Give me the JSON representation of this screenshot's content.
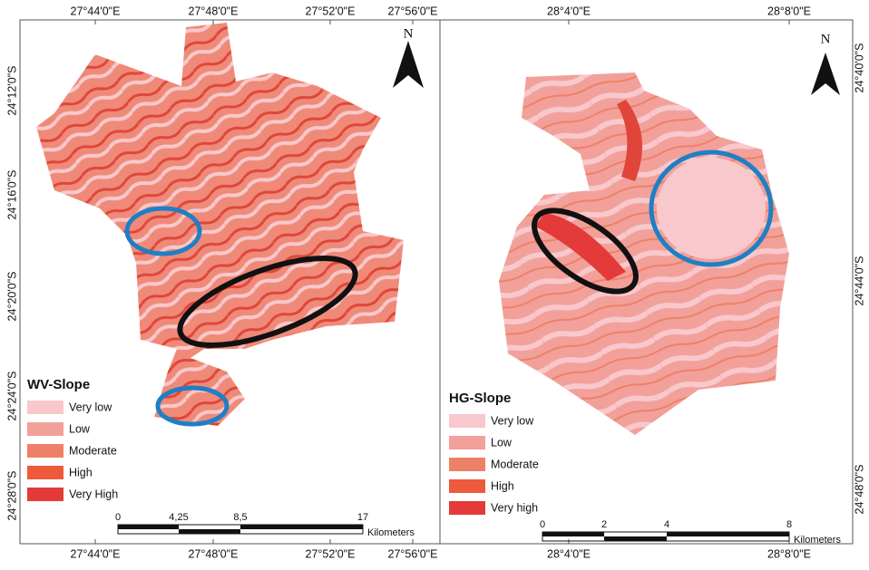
{
  "left_map": {
    "top_ticks": [
      "27°44'0\"E",
      "27°48'0\"E",
      "27°52'0\"E",
      "27°56'0\"E"
    ],
    "bottom_ticks": [
      "27°44'0\"E",
      "27°48'0\"E",
      "27°52'0\"E",
      "27°56'0\"E"
    ],
    "side_ticks": [
      "24°12'0\"S",
      "24°16'0\"S",
      "24°20'0\"S",
      "24°24'0\"S",
      "24°28'0\"S"
    ],
    "north": "N",
    "legend": {
      "title": "WV-Slope",
      "items": [
        {
          "label": "Very low",
          "color": "#f8c8cc"
        },
        {
          "label": "Low",
          "color": "#f2a09a"
        },
        {
          "label": "Moderate",
          "color": "#ef8068"
        },
        {
          "label": "High",
          "color": "#ee5a3c"
        },
        {
          "label": "Very High",
          "color": "#e53a3a"
        }
      ]
    },
    "scale": {
      "labels": [
        "0",
        "4,25",
        "8,5",
        "17"
      ],
      "unit": "Kilometers"
    }
  },
  "right_map": {
    "top_ticks": [
      "28°4'0\"E",
      "28°8'0\"E"
    ],
    "bottom_ticks": [
      "28°4'0\"E",
      "28°8'0\"E"
    ],
    "side_ticks": [
      "24°40'0\"S",
      "24°44'0\"S",
      "24°48'0\"S"
    ],
    "north": "N",
    "legend": {
      "title": "HG-Slope",
      "items": [
        {
          "label": "Very low",
          "color": "#f8c8cc"
        },
        {
          "label": "Low",
          "color": "#f2a09a"
        },
        {
          "label": "Moderate",
          "color": "#ef8068"
        },
        {
          "label": "High",
          "color": "#ee5a3c"
        },
        {
          "label": "Very high",
          "color": "#e53a3a"
        }
      ]
    },
    "scale": {
      "labels": [
        "0",
        "2",
        "4",
        "8"
      ],
      "unit": "Kilometers"
    }
  }
}
